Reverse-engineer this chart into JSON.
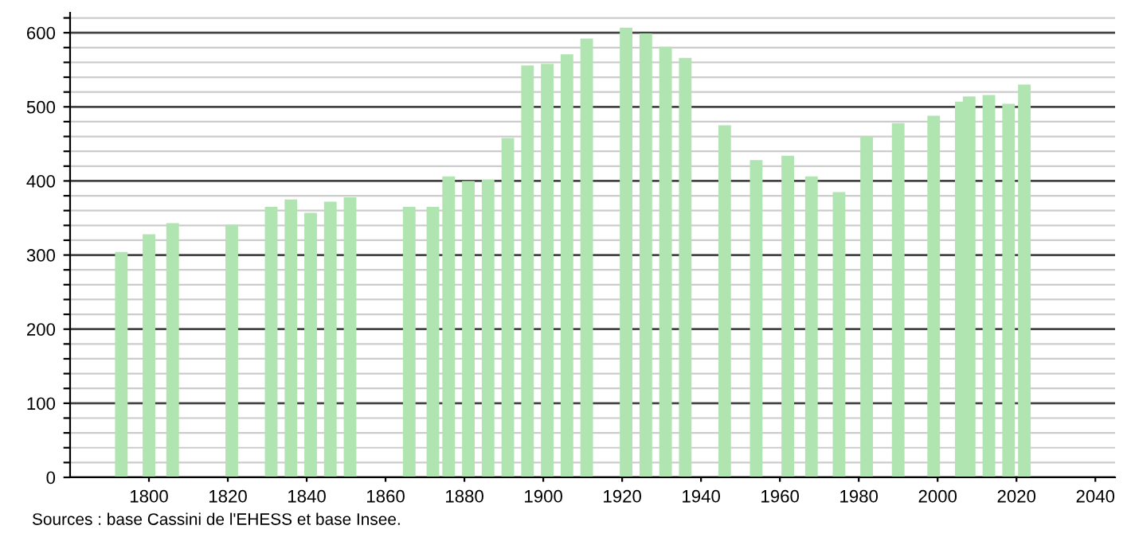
{
  "chart_data": {
    "type": "bar",
    "color": "#b0e4b0",
    "x": [
      1793,
      1800,
      1806,
      1821,
      1831,
      1836,
      1841,
      1846,
      1851,
      1866,
      1872,
      1876,
      1881,
      1886,
      1891,
      1896,
      1901,
      1906,
      1911,
      1921,
      1926,
      1931,
      1936,
      1946,
      1954,
      1962,
      1968,
      1975,
      1982,
      1990,
      1999,
      2006,
      2008,
      2013,
      2018,
      2022
    ],
    "values": [
      304,
      328,
      343,
      341,
      365,
      375,
      357,
      372,
      378,
      365,
      365,
      406,
      400,
      402,
      458,
      556,
      558,
      571,
      592,
      607,
      599,
      581,
      566,
      475,
      428,
      434,
      406,
      385,
      460,
      478,
      488,
      507,
      514,
      516,
      504,
      530
    ],
    "xlim": [
      1780,
      2045
    ],
    "xticks": [
      1800,
      1820,
      1840,
      1860,
      1880,
      1900,
      1920,
      1940,
      1960,
      1980,
      2000,
      2020,
      2040
    ],
    "ylim": [
      0,
      627
    ],
    "yticks": [
      0,
      {
        "value": 20,
        "label": null
      },
      {
        "value": 40,
        "label": null
      },
      {
        "value": 60,
        "label": null
      },
      {
        "value": 80,
        "label": null
      },
      100,
      {
        "value": 120,
        "label": null
      },
      {
        "value": 140,
        "label": null
      },
      {
        "value": 160,
        "label": null
      },
      {
        "value": 180,
        "label": null
      },
      200,
      {
        "value": 220,
        "label": null
      },
      {
        "value": 240,
        "label": null
      },
      {
        "value": 260,
        "label": null
      },
      {
        "value": 280,
        "label": null
      },
      300,
      {
        "value": 320,
        "label": null
      },
      {
        "value": 340,
        "label": null
      },
      {
        "value": 360,
        "label": null
      },
      {
        "value": 380,
        "label": null
      },
      400,
      {
        "value": 420,
        "label": null
      },
      {
        "value": 440,
        "label": null
      },
      {
        "value": 460,
        "label": null
      },
      {
        "value": 480,
        "label": null
      },
      500,
      {
        "value": 520,
        "label": null
      },
      {
        "value": 540,
        "label": null
      },
      {
        "value": 560,
        "label": null
      },
      {
        "value": 580,
        "label": null
      },
      600,
      {
        "value": 620,
        "label": null
      }
    ],
    "grid": "y",
    "annotations": [
      "Sources : base Cassini de l'EHESS et base Insee."
    ]
  }
}
